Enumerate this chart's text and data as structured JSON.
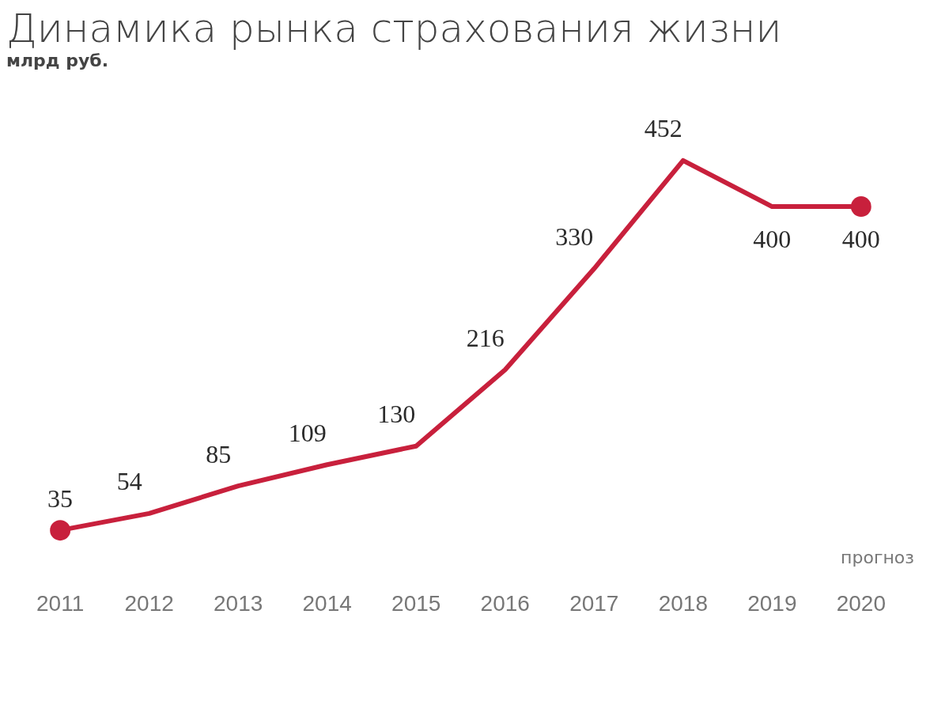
{
  "chart_data": {
    "type": "line",
    "title": "Динамика рынка страхования жизни",
    "subtitle": "млрд руб.",
    "categories": [
      "2011",
      "2012",
      "2013",
      "2014",
      "2015",
      "2016",
      "2017",
      "2018",
      "2019",
      "2020"
    ],
    "series": [
      {
        "color": "#c8203c",
        "values": [
          35,
          54,
          85,
          109,
          130,
          216,
          330,
          452,
          400,
          400
        ]
      }
    ],
    "data_labels": true,
    "grid": false,
    "legend": false,
    "annotations": [
      "прогноз"
    ]
  }
}
